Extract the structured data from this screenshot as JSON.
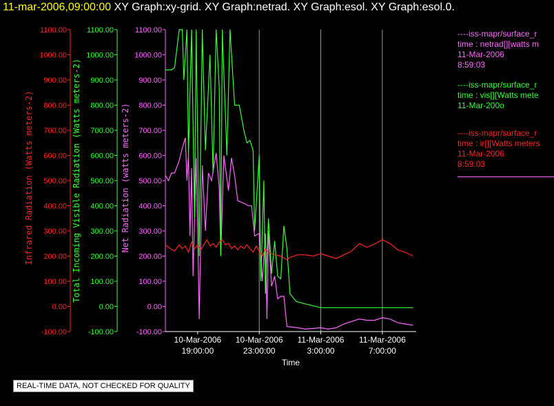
{
  "header": {
    "timestamp": "11-mar-2006,09:00:00",
    "graphs": "XY Graph:xy-grid.  XY Graph:netrad.  XY Graph:esol.  XY Graph:esol.0."
  },
  "legend": [
    {
      "line1": "----iss-mapr/surface_r",
      "line2": "time : netrad[][watts m",
      "line3": "11-Mar-2006",
      "line4": "8:59:03",
      "color": "#ff66ff"
    },
    {
      "line1": "----iss-mapr/surface_r",
      "line2": "time : vis[][Watts mete",
      "line3": "11-Mar-200o",
      "line4": "",
      "color": "#33ff33"
    },
    {
      "line1": "----iss-mapr/surface_r",
      "line2": "time : ir[][Watts meters",
      "line3": "11-Mar-2006",
      "line4": "8:59:03",
      "color": "#ff2222"
    }
  ],
  "notice": "REAL-TIME DATA, NOT CHECKED FOR QUALITY",
  "colors": {
    "ir": "#ff2222",
    "vis": "#33ff33",
    "net": "#ff66ff",
    "grid": "#cccccc",
    "axis": "#ffffff"
  },
  "chart_data": {
    "type": "line",
    "xlabel": "Time",
    "x_ticks": [
      {
        "date": "10-Mar-2006",
        "time": "19:00:00",
        "hours": 19
      },
      {
        "date": "10-Mar-2006",
        "time": "23:00:00",
        "hours": 23
      },
      {
        "date": "11-Mar-2006",
        "time": "3:00:00",
        "hours": 27
      },
      {
        "date": "11-Mar-2006",
        "time": "7:00:00",
        "hours": 31
      }
    ],
    "xlim_hours": [
      16.9,
      33.2
    ],
    "grid_x": [
      23,
      27,
      31
    ],
    "yticks": [
      "1100.00",
      "1000.00",
      "900.00",
      "800.00",
      "700.00",
      "600.00",
      "500.00",
      "400.00",
      "300.00",
      "200.00",
      "100.00",
      "0.00",
      "-100.00"
    ],
    "ylim": [
      -100,
      1100
    ],
    "axes": [
      {
        "key": "ir",
        "label": "Infrared Radiation (Watts meters-2)",
        "color": "#ff2222"
      },
      {
        "key": "vis",
        "label": "Total Incoming Visible Radiation (Watts meters-2)",
        "color": "#33ff33"
      },
      {
        "key": "net",
        "label": "Net Radiation (watts meters-2)",
        "color": "#ff66ff"
      }
    ],
    "series": [
      {
        "key": "net",
        "color": "#ff66ff",
        "points": [
          [
            16.9,
            520
          ],
          [
            17.1,
            500
          ],
          [
            17.3,
            530
          ],
          [
            17.5,
            530
          ],
          [
            17.8,
            580
          ],
          [
            18.0,
            630
          ],
          [
            18.2,
            670
          ],
          [
            18.3,
            500
          ],
          [
            18.4,
            600
          ],
          [
            18.5,
            280
          ],
          [
            18.6,
            550
          ],
          [
            18.7,
            120
          ],
          [
            18.9,
            590
          ],
          [
            19.0,
            300
          ],
          [
            19.1,
            -50
          ],
          [
            19.3,
            560
          ],
          [
            19.5,
            300
          ],
          [
            19.7,
            530
          ],
          [
            19.9,
            500
          ],
          [
            20.2,
            610
          ],
          [
            20.4,
            470
          ],
          [
            20.5,
            200
          ],
          [
            20.7,
            600
          ],
          [
            21.0,
            460
          ],
          [
            21.2,
            590
          ],
          [
            21.4,
            520
          ],
          [
            21.6,
            420
          ],
          [
            22.0,
            410
          ],
          [
            22.3,
            400
          ],
          [
            22.5,
            400
          ],
          [
            22.7,
            280
          ],
          [
            23.0,
            290
          ],
          [
            23.2,
            100
          ],
          [
            23.4,
            290
          ],
          [
            23.5,
            -50
          ],
          [
            23.6,
            300
          ],
          [
            23.8,
            80
          ],
          [
            24.0,
            120
          ],
          [
            24.2,
            30
          ],
          [
            24.4,
            40
          ],
          [
            24.6,
            40
          ],
          [
            24.8,
            -80
          ],
          [
            25.5,
            -85
          ],
          [
            26.0,
            -90
          ],
          [
            27.0,
            -85
          ],
          [
            27.5,
            -90
          ],
          [
            28.0,
            -85
          ],
          [
            28.5,
            -70
          ],
          [
            29.0,
            -60
          ],
          [
            29.5,
            -50
          ],
          [
            30.0,
            -55
          ],
          [
            30.5,
            -55
          ],
          [
            31.0,
            -45
          ],
          [
            31.5,
            -50
          ],
          [
            32.0,
            -65
          ],
          [
            32.5,
            -70
          ],
          [
            33.0,
            -75
          ]
        ]
      },
      {
        "key": "vis",
        "color": "#33ff33",
        "points": [
          [
            16.9,
            940
          ],
          [
            17.3,
            940
          ],
          [
            17.5,
            950
          ],
          [
            17.6,
            1000
          ],
          [
            17.8,
            1100
          ],
          [
            18.0,
            1100
          ],
          [
            18.1,
            900
          ],
          [
            18.3,
            1100
          ],
          [
            18.4,
            600
          ],
          [
            18.6,
            1100
          ],
          [
            18.8,
            350
          ],
          [
            18.9,
            1100
          ],
          [
            19.1,
            200
          ],
          [
            19.3,
            1100
          ],
          [
            19.5,
            620
          ],
          [
            19.8,
            1000
          ],
          [
            20.0,
            530
          ],
          [
            20.2,
            1100
          ],
          [
            20.4,
            870
          ],
          [
            20.5,
            200
          ],
          [
            20.6,
            1100
          ],
          [
            20.9,
            600
          ],
          [
            21.1,
            1100
          ],
          [
            21.4,
            800
          ],
          [
            21.7,
            800
          ],
          [
            22.0,
            700
          ],
          [
            22.2,
            650
          ],
          [
            22.4,
            660
          ],
          [
            22.6,
            620
          ],
          [
            22.7,
            300
          ],
          [
            23.0,
            600
          ],
          [
            23.1,
            100
          ],
          [
            23.3,
            500
          ],
          [
            23.4,
            50
          ],
          [
            23.6,
            350
          ],
          [
            23.8,
            130
          ],
          [
            24.0,
            260
          ],
          [
            24.2,
            120
          ],
          [
            24.4,
            110
          ],
          [
            24.6,
            320
          ],
          [
            24.8,
            230
          ],
          [
            25.0,
            50
          ],
          [
            25.4,
            20
          ],
          [
            26.0,
            10
          ],
          [
            27.0,
            -5
          ],
          [
            28.0,
            -5
          ],
          [
            29.0,
            -5
          ],
          [
            30.0,
            -5
          ],
          [
            31.0,
            -5
          ],
          [
            32.0,
            -5
          ],
          [
            33.0,
            -5
          ]
        ]
      },
      {
        "key": "ir",
        "color": "#ff2222",
        "points": [
          [
            16.9,
            245
          ],
          [
            17.2,
            230
          ],
          [
            17.5,
            220
          ],
          [
            17.8,
            245
          ],
          [
            18.0,
            230
          ],
          [
            18.2,
            240
          ],
          [
            18.4,
            215
          ],
          [
            18.6,
            255
          ],
          [
            18.8,
            230
          ],
          [
            19.0,
            245
          ],
          [
            19.2,
            225
          ],
          [
            19.4,
            245
          ],
          [
            19.6,
            265
          ],
          [
            19.8,
            240
          ],
          [
            20.0,
            250
          ],
          [
            20.2,
            235
          ],
          [
            20.4,
            255
          ],
          [
            20.6,
            265
          ],
          [
            20.8,
            245
          ],
          [
            21.0,
            250
          ],
          [
            21.2,
            230
          ],
          [
            21.4,
            240
          ],
          [
            21.6,
            225
          ],
          [
            21.8,
            240
          ],
          [
            22.0,
            230
          ],
          [
            22.2,
            245
          ],
          [
            22.4,
            230
          ],
          [
            22.6,
            215
          ],
          [
            22.8,
            240
          ],
          [
            23.0,
            220
          ],
          [
            23.2,
            200
          ],
          [
            23.4,
            230
          ],
          [
            23.6,
            215
          ],
          [
            24.0,
            205
          ],
          [
            24.4,
            200
          ],
          [
            24.8,
            185
          ],
          [
            25.0,
            195
          ],
          [
            25.5,
            205
          ],
          [
            26.0,
            205
          ],
          [
            26.5,
            200
          ],
          [
            27.0,
            210
          ],
          [
            27.5,
            200
          ],
          [
            28.0,
            190
          ],
          [
            28.5,
            205
          ],
          [
            29.0,
            220
          ],
          [
            29.5,
            250
          ],
          [
            30.0,
            235
          ],
          [
            30.4,
            245
          ],
          [
            31.0,
            265
          ],
          [
            31.5,
            250
          ],
          [
            32.0,
            225
          ],
          [
            32.5,
            215
          ],
          [
            33.0,
            200
          ]
        ]
      }
    ]
  }
}
